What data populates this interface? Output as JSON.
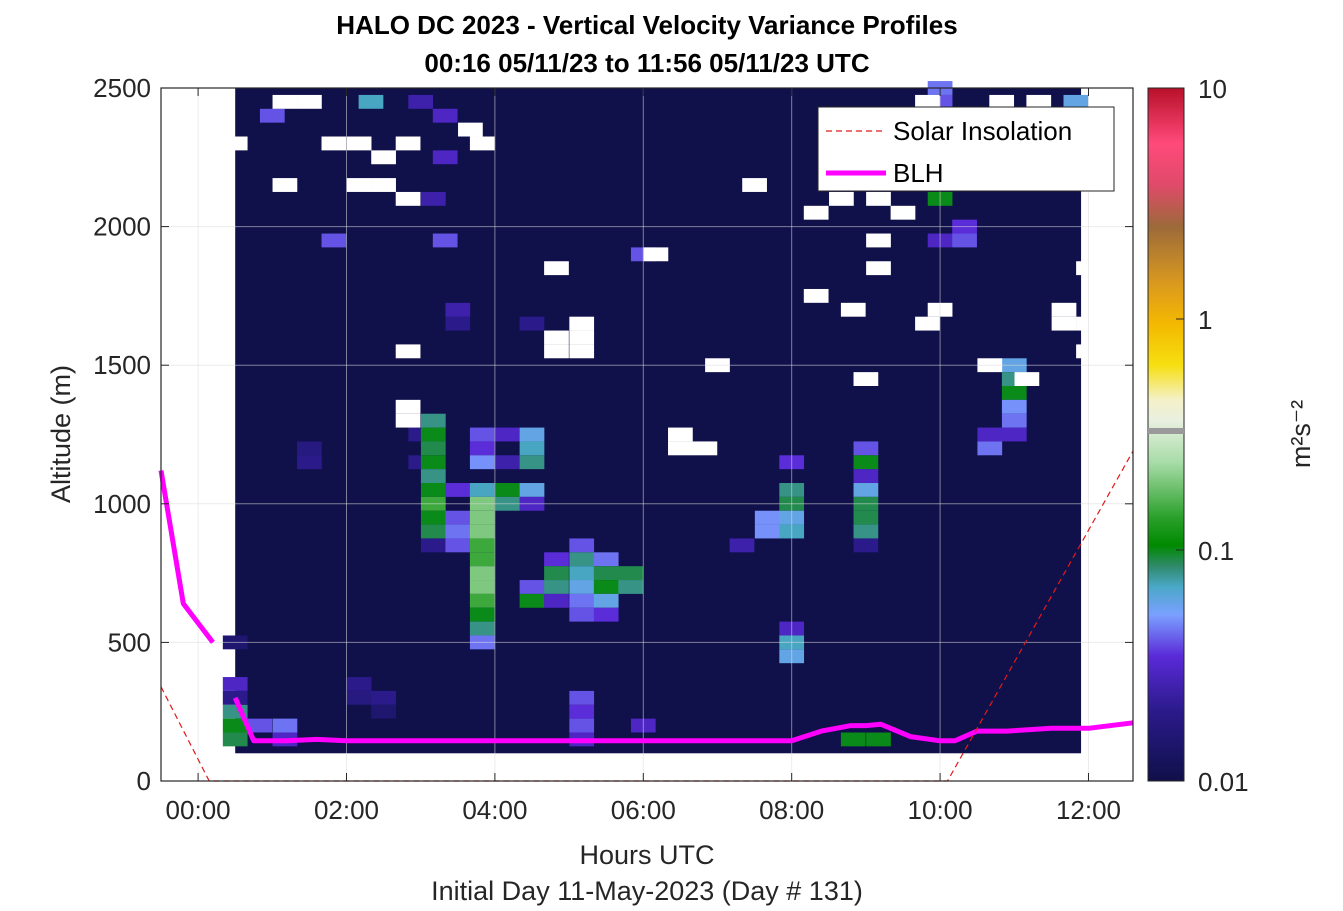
{
  "chart_data": {
    "type": "heatmap",
    "title": "HALO DC 2023 - Vertical Velocity Variance Profiles",
    "subtitle": "00:16 05/11/23 to 11:56 05/11/23  UTC",
    "xlabel": "Hours UTC",
    "xlabel2": "Initial Day 11-May-2023 (Day # 131)",
    "ylabel": "Altitude (m)",
    "colorbar_label": "m²s⁻²",
    "xlim": [
      -0.5,
      12.6
    ],
    "ylim": [
      0,
      2500
    ],
    "x_ticks": [
      0,
      2,
      4,
      6,
      8,
      10,
      12
    ],
    "x_tick_labels": [
      "00:00",
      "02:00",
      "04:00",
      "06:00",
      "08:00",
      "10:00",
      "12:00"
    ],
    "y_ticks": [
      0,
      500,
      1000,
      1500,
      2000,
      2500
    ],
    "y_tick_labels": [
      "0",
      "500",
      "1000",
      "1500",
      "2000",
      "2500"
    ],
    "colorbar_ticks": [
      0.01,
      0.1,
      1,
      10
    ],
    "colorbar_tick_labels": [
      "0.01",
      "0.1",
      "1",
      "10"
    ],
    "colorbar_scale": "log",
    "heatmap_extent": {
      "x": [
        0.5,
        11.9
      ],
      "y": [
        100,
        2500
      ]
    },
    "background_value": 0.01,
    "grid": true,
    "legend_position": "top-right",
    "legend": [
      {
        "name": "Solar Insolation",
        "style": "dashed",
        "color": "#e11a1a"
      },
      {
        "name": "BLH",
        "style": "solid",
        "color": "#ff00ff"
      }
    ],
    "heatmap_cells": [
      {
        "x": 0.5,
        "y": 250,
        "v": 0.08
      },
      {
        "x": 0.5,
        "y": 200,
        "v": 0.1
      },
      {
        "x": 0.5,
        "y": 150,
        "v": 0.09
      },
      {
        "x": 0.5,
        "y": 350,
        "v": 0.03
      },
      {
        "x": 0.5,
        "y": 300,
        "v": 0.02
      },
      {
        "x": 0.5,
        "y": 500,
        "v": 0.015
      },
      {
        "x": 0.83,
        "y": 200,
        "v": 0.04
      },
      {
        "x": 1.17,
        "y": 200,
        "v": 0.045
      },
      {
        "x": 1.17,
        "y": 150,
        "v": 0.03
      },
      {
        "x": 1.5,
        "y": 1150,
        "v": 0.02
      },
      {
        "x": 1.5,
        "y": 1200,
        "v": 0.018
      },
      {
        "x": 2.17,
        "y": 350,
        "v": 0.02
      },
      {
        "x": 2.17,
        "y": 300,
        "v": 0.018
      },
      {
        "x": 2.5,
        "y": 300,
        "v": 0.02
      },
      {
        "x": 2.5,
        "y": 250,
        "v": 0.015
      },
      {
        "x": 3.0,
        "y": 1250,
        "v": 0.02
      },
      {
        "x": 3.0,
        "y": 1150,
        "v": 0.02
      },
      {
        "x": 3.17,
        "y": 1300,
        "v": 0.08
      },
      {
        "x": 3.17,
        "y": 1250,
        "v": 0.1
      },
      {
        "x": 3.17,
        "y": 1200,
        "v": 0.09
      },
      {
        "x": 3.17,
        "y": 1150,
        "v": 0.1
      },
      {
        "x": 3.17,
        "y": 1100,
        "v": 0.08
      },
      {
        "x": 3.17,
        "y": 1050,
        "v": 0.1
      },
      {
        "x": 3.17,
        "y": 1000,
        "v": 0.15
      },
      {
        "x": 3.17,
        "y": 950,
        "v": 0.1
      },
      {
        "x": 3.17,
        "y": 900,
        "v": 0.09
      },
      {
        "x": 3.17,
        "y": 850,
        "v": 0.02
      },
      {
        "x": 3.5,
        "y": 1050,
        "v": 0.035
      },
      {
        "x": 3.5,
        "y": 950,
        "v": 0.04
      },
      {
        "x": 3.5,
        "y": 900,
        "v": 0.045
      },
      {
        "x": 3.5,
        "y": 850,
        "v": 0.04
      },
      {
        "x": 3.83,
        "y": 1250,
        "v": 0.04
      },
      {
        "x": 3.83,
        "y": 1200,
        "v": 0.035
      },
      {
        "x": 3.83,
        "y": 1150,
        "v": 0.05
      },
      {
        "x": 3.83,
        "y": 1050,
        "v": 0.07
      },
      {
        "x": 3.83,
        "y": 1000,
        "v": 0.2
      },
      {
        "x": 3.83,
        "y": 950,
        "v": 0.2
      },
      {
        "x": 3.83,
        "y": 900,
        "v": 0.2
      },
      {
        "x": 3.83,
        "y": 850,
        "v": 0.15
      },
      {
        "x": 3.83,
        "y": 800,
        "v": 0.15
      },
      {
        "x": 3.83,
        "y": 750,
        "v": 0.2
      },
      {
        "x": 3.83,
        "y": 700,
        "v": 0.2
      },
      {
        "x": 3.83,
        "y": 650,
        "v": 0.15
      },
      {
        "x": 3.83,
        "y": 600,
        "v": 0.1
      },
      {
        "x": 3.83,
        "y": 550,
        "v": 0.08
      },
      {
        "x": 3.83,
        "y": 500,
        "v": 0.045
      },
      {
        "x": 4.17,
        "y": 1050,
        "v": 0.1
      },
      {
        "x": 4.17,
        "y": 1000,
        "v": 0.08
      },
      {
        "x": 4.17,
        "y": 1250,
        "v": 0.03
      },
      {
        "x": 4.17,
        "y": 1150,
        "v": 0.025
      },
      {
        "x": 4.5,
        "y": 1250,
        "v": 0.06
      },
      {
        "x": 4.5,
        "y": 1200,
        "v": 0.07
      },
      {
        "x": 4.5,
        "y": 1150,
        "v": 0.08
      },
      {
        "x": 4.5,
        "y": 1050,
        "v": 0.06
      },
      {
        "x": 4.5,
        "y": 1000,
        "v": 0.03
      },
      {
        "x": 4.5,
        "y": 700,
        "v": 0.04
      },
      {
        "x": 4.5,
        "y": 650,
        "v": 0.1
      },
      {
        "x": 4.83,
        "y": 800,
        "v": 0.035
      },
      {
        "x": 4.83,
        "y": 750,
        "v": 0.09
      },
      {
        "x": 4.83,
        "y": 700,
        "v": 0.08
      },
      {
        "x": 4.83,
        "y": 650,
        "v": 0.03
      },
      {
        "x": 5.17,
        "y": 850,
        "v": 0.04
      },
      {
        "x": 5.17,
        "y": 800,
        "v": 0.08
      },
      {
        "x": 5.17,
        "y": 750,
        "v": 0.07
      },
      {
        "x": 5.17,
        "y": 700,
        "v": 0.06
      },
      {
        "x": 5.17,
        "y": 650,
        "v": 0.045
      },
      {
        "x": 5.17,
        "y": 600,
        "v": 0.04
      },
      {
        "x": 5.17,
        "y": 300,
        "v": 0.04
      },
      {
        "x": 5.17,
        "y": 250,
        "v": 0.035
      },
      {
        "x": 5.17,
        "y": 200,
        "v": 0.04
      },
      {
        "x": 5.17,
        "y": 150,
        "v": 0.03
      },
      {
        "x": 5.5,
        "y": 800,
        "v": 0.045
      },
      {
        "x": 5.5,
        "y": 750,
        "v": 0.09
      },
      {
        "x": 5.5,
        "y": 700,
        "v": 0.1
      },
      {
        "x": 5.5,
        "y": 650,
        "v": 0.06
      },
      {
        "x": 5.5,
        "y": 600,
        "v": 0.035
      },
      {
        "x": 5.83,
        "y": 750,
        "v": 0.09
      },
      {
        "x": 5.83,
        "y": 700,
        "v": 0.08
      },
      {
        "x": 6.0,
        "y": 200,
        "v": 0.03
      },
      {
        "x": 7.33,
        "y": 850,
        "v": 0.025
      },
      {
        "x": 7.67,
        "y": 950,
        "v": 0.05
      },
      {
        "x": 7.67,
        "y": 900,
        "v": 0.05
      },
      {
        "x": 8.0,
        "y": 1050,
        "v": 0.08
      },
      {
        "x": 8.0,
        "y": 1000,
        "v": 0.09
      },
      {
        "x": 8.0,
        "y": 950,
        "v": 0.06
      },
      {
        "x": 8.0,
        "y": 900,
        "v": 0.07
      },
      {
        "x": 8.0,
        "y": 1150,
        "v": 0.035
      },
      {
        "x": 8.0,
        "y": 550,
        "v": 0.03
      },
      {
        "x": 8.0,
        "y": 500,
        "v": 0.07
      },
      {
        "x": 8.0,
        "y": 450,
        "v": 0.06
      },
      {
        "x": 9.0,
        "y": 1200,
        "v": 0.04
      },
      {
        "x": 9.0,
        "y": 1150,
        "v": 0.1
      },
      {
        "x": 9.0,
        "y": 1100,
        "v": 0.03
      },
      {
        "x": 9.0,
        "y": 1050,
        "v": 0.06
      },
      {
        "x": 9.0,
        "y": 1000,
        "v": 0.09
      },
      {
        "x": 9.0,
        "y": 950,
        "v": 0.09
      },
      {
        "x": 9.0,
        "y": 900,
        "v": 0.08
      },
      {
        "x": 9.0,
        "y": 850,
        "v": 0.02
      },
      {
        "x": 8.83,
        "y": 150,
        "v": 0.1
      },
      {
        "x": 9.17,
        "y": 150,
        "v": 0.1
      },
      {
        "x": 10.0,
        "y": 2100,
        "v": 0.1
      },
      {
        "x": 10.0,
        "y": 1950,
        "v": 0.03
      },
      {
        "x": 10.33,
        "y": 1950,
        "v": 0.04
      },
      {
        "x": 10.33,
        "y": 2000,
        "v": 0.035
      },
      {
        "x": 11.0,
        "y": 1500,
        "v": 0.06
      },
      {
        "x": 11.0,
        "y": 1450,
        "v": 0.08
      },
      {
        "x": 11.0,
        "y": 1400,
        "v": 0.1
      },
      {
        "x": 11.0,
        "y": 1350,
        "v": 0.05
      },
      {
        "x": 11.0,
        "y": 1300,
        "v": 0.045
      },
      {
        "x": 11.0,
        "y": 1250,
        "v": 0.03
      },
      {
        "x": 10.67,
        "y": 1200,
        "v": 0.045
      },
      {
        "x": 10.67,
        "y": 1250,
        "v": 0.03
      },
      {
        "x": 10.0,
        "y": 2450,
        "v": 0.04
      },
      {
        "x": 10.0,
        "y": 2500,
        "v": 0.045
      },
      {
        "x": 11.83,
        "y": 2450,
        "v": 0.06
      },
      {
        "x": 2.33,
        "y": 2450,
        "v": 0.07
      },
      {
        "x": 3.0,
        "y": 2450,
        "v": 0.025
      },
      {
        "x": 3.33,
        "y": 2400,
        "v": 0.03
      },
      {
        "x": 1.0,
        "y": 2400,
        "v": 0.04
      },
      {
        "x": 3.33,
        "y": 2250,
        "v": 0.03
      },
      {
        "x": 1.83,
        "y": 1950,
        "v": 0.04
      },
      {
        "x": 3.33,
        "y": 1950,
        "v": 0.04
      },
      {
        "x": 6.0,
        "y": 1900,
        "v": 0.04
      },
      {
        "x": 3.17,
        "y": 2100,
        "v": 0.025
      },
      {
        "x": 3.5,
        "y": 1650,
        "v": 0.02
      },
      {
        "x": 3.5,
        "y": 1700,
        "v": 0.025
      },
      {
        "x": 4.5,
        "y": 1650,
        "v": 0.02
      }
    ],
    "blank_cells": [
      {
        "x": 1.5,
        "y": 2450
      },
      {
        "x": 1.83,
        "y": 2300
      },
      {
        "x": 2.17,
        "y": 2300
      },
      {
        "x": 2.5,
        "y": 2250
      },
      {
        "x": 2.83,
        "y": 2300
      },
      {
        "x": 0.5,
        "y": 2300
      },
      {
        "x": 1.17,
        "y": 2150
      },
      {
        "x": 3.83,
        "y": 2300
      },
      {
        "x": 2.17,
        "y": 2150
      },
      {
        "x": 2.5,
        "y": 2150
      },
      {
        "x": 2.83,
        "y": 2100
      },
      {
        "x": 4.83,
        "y": 1850
      },
      {
        "x": 6.17,
        "y": 1900
      },
      {
        "x": 7.5,
        "y": 2150
      },
      {
        "x": 8.33,
        "y": 2050
      },
      {
        "x": 9.17,
        "y": 2100
      },
      {
        "x": 9.17,
        "y": 1950
      },
      {
        "x": 9.5,
        "y": 2050
      },
      {
        "x": 9.17,
        "y": 1850
      },
      {
        "x": 8.33,
        "y": 1750
      },
      {
        "x": 8.83,
        "y": 1700
      },
      {
        "x": 10.0,
        "y": 1700
      },
      {
        "x": 9.83,
        "y": 1650
      },
      {
        "x": 11.67,
        "y": 1650
      },
      {
        "x": 11.67,
        "y": 1700
      },
      {
        "x": 12.0,
        "y": 1650
      },
      {
        "x": 12.0,
        "y": 1850
      },
      {
        "x": 12.0,
        "y": 1550
      },
      {
        "x": 5.17,
        "y": 1650
      },
      {
        "x": 5.17,
        "y": 1600
      },
      {
        "x": 5.17,
        "y": 1550
      },
      {
        "x": 4.83,
        "y": 1600
      },
      {
        "x": 4.83,
        "y": 1550
      },
      {
        "x": 2.83,
        "y": 1550
      },
      {
        "x": 7.0,
        "y": 1500
      },
      {
        "x": 9.0,
        "y": 1450
      },
      {
        "x": 10.67,
        "y": 1500
      },
      {
        "x": 11.17,
        "y": 1450
      },
      {
        "x": 2.83,
        "y": 1300
      },
      {
        "x": 2.83,
        "y": 1350
      },
      {
        "x": 6.5,
        "y": 1250
      },
      {
        "x": 6.83,
        "y": 1200
      },
      {
        "x": 6.5,
        "y": 1200
      },
      {
        "x": 3.67,
        "y": 2350
      },
      {
        "x": 8.67,
        "y": 2100
      },
      {
        "x": 9.83,
        "y": 2450
      },
      {
        "x": 10.83,
        "y": 2450
      },
      {
        "x": 11.33,
        "y": 2450
      },
      {
        "x": 1.17,
        "y": 2450
      }
    ],
    "series": [
      {
        "name": "BLH",
        "x": [
          -0.5,
          -0.2,
          0.2,
          null,
          0.5,
          0.75,
          1.2,
          1.6,
          2.0,
          2.5,
          3.0,
          4.0,
          5.0,
          6.0,
          7.0,
          8.0,
          8.4,
          8.8,
          9.0,
          9.2,
          9.6,
          10.0,
          10.2,
          10.5,
          10.9,
          11.5,
          12.0,
          12.6
        ],
        "y": [
          1120,
          640,
          500,
          null,
          300,
          145,
          145,
          150,
          145,
          145,
          145,
          145,
          145,
          145,
          145,
          145,
          180,
          200,
          200,
          205,
          160,
          145,
          145,
          180,
          180,
          190,
          190,
          210
        ]
      },
      {
        "name": "Solar Insolation",
        "x": [
          -0.5,
          0.15,
          0.2,
          10.0,
          10.1,
          12.6
        ],
        "y": [
          340,
          0,
          0,
          0,
          0,
          1190
        ]
      }
    ]
  }
}
